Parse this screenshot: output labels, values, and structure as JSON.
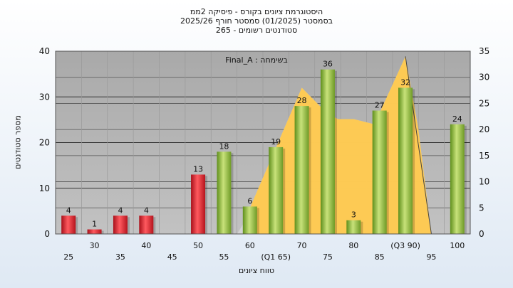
{
  "titles": {
    "line1": "היסטוגרמת ציונים בקורס - פיסיקה 2ממ",
    "line2": "בסמסטר  (01/2025)  סמסטר חורף 2025/26",
    "line3": "סטודנטים רשומים - 265"
  },
  "annotation": "בשימחה : Final_A",
  "chart_data": {
    "type": "bar",
    "xlabel": "טווח ציונים",
    "ylabel": "מספר סטודנטים",
    "ylim": [
      0,
      40
    ],
    "y2lim": [
      0,
      35
    ],
    "yticks": [
      0,
      10,
      20,
      30,
      40
    ],
    "y2ticks": [
      0,
      5,
      10,
      15,
      20,
      25,
      30,
      35
    ],
    "grid": true,
    "x_ticks": [
      {
        "x": 25,
        "label": "25",
        "row": "low"
      },
      {
        "x": 30,
        "label": "30",
        "row": "high"
      },
      {
        "x": 35,
        "label": "35",
        "row": "low"
      },
      {
        "x": 40,
        "label": "40",
        "row": "high"
      },
      {
        "x": 45,
        "label": "45",
        "row": "low"
      },
      {
        "x": 50,
        "label": "50",
        "row": "high"
      },
      {
        "x": 55,
        "label": "55",
        "row": "low"
      },
      {
        "x": 60,
        "label": "60",
        "row": "high"
      },
      {
        "x": 65,
        "label": "(Q1 65)",
        "row": "low"
      },
      {
        "x": 70,
        "label": "70",
        "row": "high"
      },
      {
        "x": 75,
        "label": "75",
        "row": "low"
      },
      {
        "x": 80,
        "label": "80",
        "row": "high"
      },
      {
        "x": 85,
        "label": "85",
        "row": "low"
      },
      {
        "x": 90,
        "label": "(Q3 90)",
        "row": "high"
      },
      {
        "x": 95,
        "label": "95",
        "row": "low"
      },
      {
        "x": 100,
        "label": "100",
        "row": "high"
      }
    ],
    "bars": [
      {
        "x": 25,
        "value": 4,
        "label": "4",
        "status": "fail"
      },
      {
        "x": 30,
        "value": 1,
        "label": "1",
        "status": "fail"
      },
      {
        "x": 35,
        "value": 4,
        "label": "4",
        "status": "fail"
      },
      {
        "x": 40,
        "value": 4,
        "label": "4",
        "status": "fail"
      },
      {
        "x": 50,
        "value": 13,
        "label": "13",
        "status": "fail"
      },
      {
        "x": 55,
        "value": 18,
        "label": "18",
        "status": "pass"
      },
      {
        "x": 60,
        "value": 6,
        "label": "6",
        "status": "pass"
      },
      {
        "x": 65,
        "value": 19,
        "label": "19",
        "status": "pass"
      },
      {
        "x": 70,
        "value": 28,
        "label": "28",
        "status": "pass"
      },
      {
        "x": 75,
        "value": 36,
        "label": "36",
        "status": "pass"
      },
      {
        "x": 80,
        "value": 3,
        "label": "3",
        "status": "pass"
      },
      {
        "x": 85,
        "value": 27,
        "label": "27",
        "status": "pass"
      },
      {
        "x": 90,
        "value": 32,
        "label": "32",
        "status": "pass"
      },
      {
        "x": 100,
        "value": 24,
        "label": "24",
        "status": "pass"
      }
    ],
    "area": [
      {
        "x": 60,
        "y": 5
      },
      {
        "x": 70,
        "y": 28
      },
      {
        "x": 75,
        "y": 23
      },
      {
        "x": 77,
        "y": 22
      },
      {
        "x": 80,
        "y": 22
      },
      {
        "x": 84,
        "y": 21
      },
      {
        "x": 90,
        "y": 34
      },
      {
        "x": 92.5,
        "y": 20
      },
      {
        "x": 95,
        "y": 0
      }
    ],
    "colors": {
      "plot_bg": "#b4b4b4",
      "fail_bar": "#d8232a",
      "pass_bar": "#8fbd3c",
      "area_fill": "#ffc94d",
      "band_fill": "#d6d6d6"
    }
  }
}
